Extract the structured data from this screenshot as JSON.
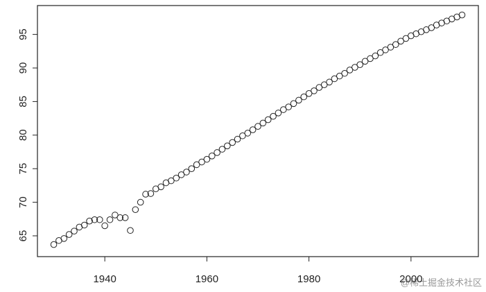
{
  "chart_data": {
    "type": "scatter",
    "x": [
      1930,
      1931,
      1932,
      1933,
      1934,
      1935,
      1936,
      1937,
      1938,
      1939,
      1940,
      1941,
      1942,
      1943,
      1944,
      1945,
      1946,
      1947,
      1948,
      1949,
      1950,
      1951,
      1952,
      1953,
      1954,
      1955,
      1956,
      1957,
      1958,
      1959,
      1960,
      1961,
      1962,
      1963,
      1964,
      1965,
      1966,
      1967,
      1968,
      1969,
      1970,
      1971,
      1972,
      1973,
      1974,
      1975,
      1976,
      1977,
      1978,
      1979,
      1980,
      1981,
      1982,
      1983,
      1984,
      1985,
      1986,
      1987,
      1988,
      1989,
      1990,
      1991,
      1992,
      1993,
      1994,
      1995,
      1996,
      1997,
      1998,
      1999,
      2000,
      2001,
      2002,
      2003,
      2004,
      2005,
      2006,
      2007,
      2008,
      2009,
      2010
    ],
    "values": [
      63.7,
      64.3,
      64.6,
      65.2,
      65.7,
      66.3,
      66.6,
      67.2,
      67.4,
      67.4,
      66.5,
      67.4,
      68.1,
      67.7,
      67.7,
      65.8,
      68.9,
      70.0,
      71.2,
      71.3,
      72.0,
      72.3,
      72.9,
      73.2,
      73.6,
      74.1,
      74.5,
      75.0,
      75.6,
      76.0,
      76.4,
      76.9,
      77.4,
      77.9,
      78.4,
      78.9,
      79.4,
      79.9,
      80.3,
      80.8,
      81.3,
      81.8,
      82.3,
      82.8,
      83.3,
      83.8,
      84.2,
      84.7,
      85.2,
      85.7,
      86.2,
      86.6,
      87.1,
      87.5,
      87.9,
      88.4,
      88.8,
      89.2,
      89.7,
      90.1,
      90.5,
      91.0,
      91.4,
      91.8,
      92.3,
      92.7,
      93.1,
      93.5,
      94.0,
      94.4,
      94.8,
      95.1,
      95.4,
      95.7,
      96.0,
      96.4,
      96.7,
      97.0,
      97.3,
      97.6,
      97.9
    ],
    "color": "#222222",
    "xlim": [
      1926.8,
      2013.2
    ],
    "xticks": [
      1940,
      1960,
      1980,
      2000
    ],
    "ylim": [
      61.9,
      99.3
    ],
    "yticks": [
      65,
      70,
      75,
      80,
      85,
      90,
      95
    ],
    "watermark": "@稀土掘金技术社区"
  }
}
